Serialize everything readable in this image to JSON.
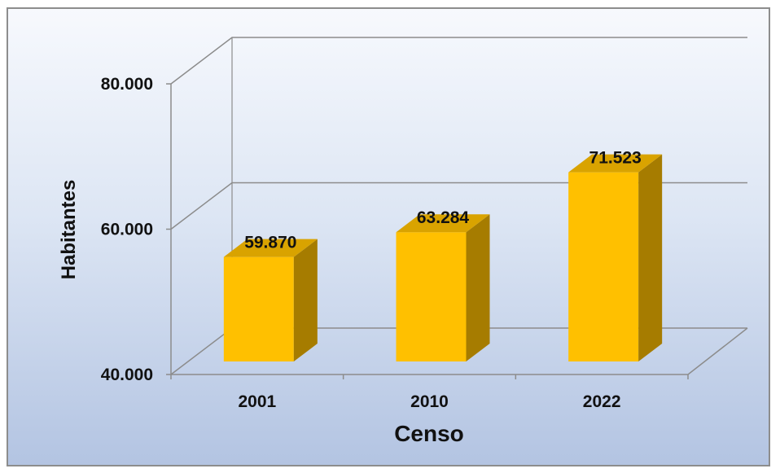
{
  "chart_data": {
    "type": "bar",
    "style": "3d-column",
    "categories": [
      "2001",
      "2010",
      "2022"
    ],
    "values": [
      59870,
      63284,
      71523
    ],
    "data_labels": [
      "59.870",
      "63.284",
      "71.523"
    ],
    "xlabel": "Censo",
    "ylabel": "Habitantes",
    "ylim": [
      40000,
      80000
    ],
    "y_ticks": [
      {
        "value": 40000,
        "label": "40.000"
      },
      {
        "value": 60000,
        "label": "60.000"
      },
      {
        "value": 80000,
        "label": "80.000"
      }
    ],
    "grid": true,
    "legend": "none",
    "colors": {
      "bar_front": "#ffc000",
      "bar_top": "#d9a300",
      "bar_side": "#a67c00",
      "gridline": "#8c8c8c"
    }
  }
}
